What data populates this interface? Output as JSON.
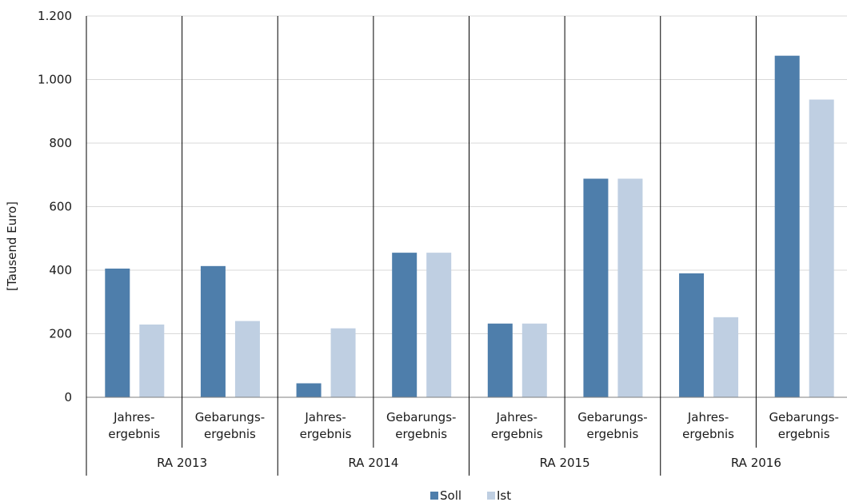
{
  "chart_data": {
    "type": "bar",
    "ylabel": "[Tausend Euro]",
    "ylim": [
      0,
      1200
    ],
    "yticks": [
      0,
      200,
      400,
      600,
      800,
      1000,
      1200
    ],
    "ytick_labels": [
      "0",
      "200",
      "400",
      "600",
      "800",
      "1.000",
      "1.200"
    ],
    "grid": true,
    "legend_position": "bottom-center",
    "groups": [
      "RA 2013",
      "RA 2014",
      "RA 2015",
      "RA 2016"
    ],
    "categories": [
      {
        "group": "RA 2013",
        "label_lines": [
          "Jahres-",
          "ergebnis"
        ]
      },
      {
        "group": "RA 2013",
        "label_lines": [
          "Gebarungs-",
          "ergebnis"
        ]
      },
      {
        "group": "RA 2014",
        "label_lines": [
          "Jahres-",
          "ergebnis"
        ]
      },
      {
        "group": "RA 2014",
        "label_lines": [
          "Gebarungs-",
          "ergebnis"
        ]
      },
      {
        "group": "RA 2015",
        "label_lines": [
          "Jahres-",
          "ergebnis"
        ]
      },
      {
        "group": "RA 2015",
        "label_lines": [
          "Gebarungs-",
          "ergebnis"
        ]
      },
      {
        "group": "RA 2016",
        "label_lines": [
          "Jahres-",
          "ergebnis"
        ]
      },
      {
        "group": "RA 2016",
        "label_lines": [
          "Gebarungs-",
          "ergebnis"
        ]
      }
    ],
    "series": [
      {
        "name": "Soll",
        "color": "#4e7eab",
        "values": [
          405,
          413,
          44,
          455,
          232,
          688,
          390,
          1075
        ]
      },
      {
        "name": "Ist",
        "color": "#bfcfe2",
        "values": [
          229,
          240,
          217,
          455,
          232,
          688,
          252,
          937
        ]
      }
    ]
  }
}
